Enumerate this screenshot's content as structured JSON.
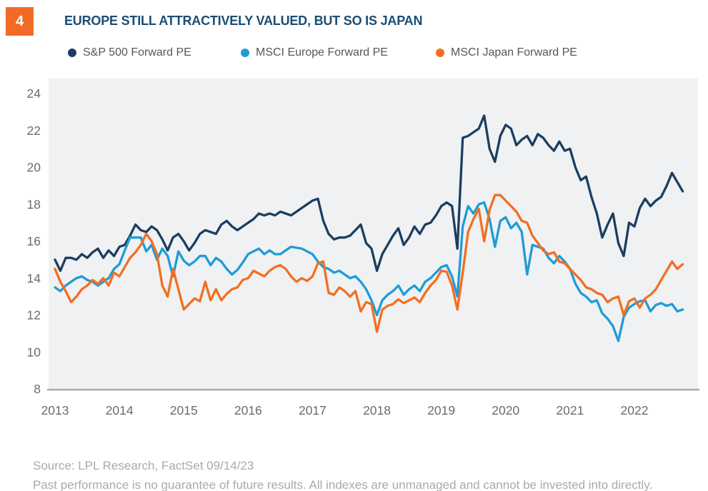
{
  "figure_badge": "4",
  "title": "EUROPE STILL ATTRACTIVELY VALUED, BUT SO IS JAPAN",
  "footer": {
    "source": "Source: LPL Research, FactSet  09/14/23",
    "disclaimer": "Past performance is no guarantee of future results. All indexes are unmanaged and cannot be invested into directly."
  },
  "colors": {
    "badge_orange": "#F16B26",
    "title_navy": "#1B4D73",
    "plot_bg": "#F0F1F2",
    "axis_line": "#A9ABAD",
    "tick_text": "#6A6C6E",
    "legend_text": "#55575A",
    "footer_text": "#A8AAAD"
  },
  "chart_data": {
    "type": "line",
    "title": "EUROPE STILL ATTRACTIVELY VALUED, BUT SO IS JAPAN",
    "x_start": "2013-12",
    "x_end": "2023-09",
    "frequency": "monthly",
    "x_tick_labels": [
      "2013",
      "2014",
      "2015",
      "2016",
      "2017",
      "2018",
      "2019",
      "2020",
      "2021",
      "2022"
    ],
    "x_tick_indices": [
      0,
      12,
      24,
      36,
      48,
      60,
      72,
      84,
      96,
      108
    ],
    "y_ticks": [
      8,
      10,
      12,
      14,
      16,
      18,
      20,
      22,
      24
    ],
    "ylim": [
      8,
      24.9
    ],
    "grid": false,
    "legend_position": "top",
    "series": [
      {
        "name": "S&P 500 Forward PE",
        "color": "#1A3E61",
        "values": [
          15.0,
          14.4,
          15.1,
          15.1,
          15.0,
          15.3,
          15.1,
          15.4,
          15.6,
          15.1,
          15.5,
          15.2,
          15.7,
          15.8,
          16.3,
          16.9,
          16.6,
          16.5,
          16.8,
          16.6,
          16.1,
          15.5,
          16.2,
          16.4,
          16.0,
          15.5,
          15.9,
          16.4,
          16.6,
          16.5,
          16.4,
          16.9,
          17.1,
          16.8,
          16.6,
          16.8,
          17.0,
          17.2,
          17.5,
          17.4,
          17.5,
          17.4,
          17.6,
          17.5,
          17.4,
          17.6,
          17.8,
          18.0,
          18.2,
          18.3,
          17.1,
          16.4,
          16.1,
          16.2,
          16.2,
          16.3,
          16.6,
          16.9,
          15.9,
          15.6,
          14.4,
          15.3,
          15.8,
          16.3,
          16.7,
          15.8,
          16.2,
          16.8,
          16.4,
          16.9,
          17.0,
          17.4,
          17.9,
          18.1,
          17.9,
          15.6,
          21.6,
          21.7,
          21.9,
          22.1,
          22.8,
          21.0,
          20.3,
          21.7,
          22.3,
          22.1,
          21.2,
          21.5,
          21.7,
          21.2,
          21.8,
          21.6,
          21.2,
          20.9,
          21.4,
          20.9,
          21.0,
          20.0,
          19.3,
          19.5,
          18.4,
          17.5,
          16.2,
          16.9,
          17.5,
          15.9,
          15.2,
          17.0,
          16.8,
          17.8,
          18.3,
          17.9,
          18.2,
          18.4,
          19.0,
          19.7,
          19.2,
          18.7
        ]
      },
      {
        "name": "MSCI Europe Forward PE",
        "color": "#1E9CD7",
        "values": [
          13.5,
          13.3,
          13.6,
          13.8,
          14.0,
          14.1,
          13.9,
          13.8,
          13.6,
          13.8,
          14.0,
          14.5,
          14.75,
          15.5,
          16.2,
          16.2,
          16.2,
          15.45,
          15.8,
          15.0,
          15.6,
          15.2,
          14.1,
          15.45,
          14.95,
          14.7,
          14.9,
          15.2,
          15.2,
          14.7,
          15.1,
          14.9,
          14.5,
          14.2,
          14.45,
          14.85,
          15.3,
          15.45,
          15.6,
          15.3,
          15.5,
          15.3,
          15.3,
          15.5,
          15.7,
          15.65,
          15.6,
          15.45,
          15.3,
          14.9,
          14.6,
          14.5,
          14.3,
          14.4,
          14.2,
          14.0,
          14.1,
          13.8,
          13.4,
          12.8,
          12.0,
          12.8,
          13.1,
          13.3,
          13.6,
          13.1,
          13.4,
          13.6,
          13.3,
          13.8,
          14.0,
          14.3,
          14.6,
          14.7,
          14.1,
          13.0,
          16.8,
          17.9,
          17.5,
          18.0,
          18.1,
          17.2,
          15.7,
          17.1,
          17.3,
          16.7,
          17.0,
          16.5,
          14.2,
          15.8,
          15.7,
          15.6,
          15.1,
          14.8,
          15.2,
          14.9,
          14.5,
          13.7,
          13.2,
          13.0,
          12.7,
          12.8,
          12.1,
          11.8,
          11.4,
          10.6,
          11.9,
          12.4,
          12.6,
          12.75,
          12.8,
          12.2,
          12.55,
          12.65,
          12.5,
          12.6,
          12.2,
          12.3
        ]
      },
      {
        "name": "MSCI Japan Forward PE",
        "color": "#F26F21",
        "values": [
          14.5,
          13.8,
          13.3,
          12.7,
          13.0,
          13.4,
          13.6,
          13.9,
          13.7,
          14.0,
          13.6,
          14.3,
          14.1,
          14.6,
          15.1,
          15.4,
          15.8,
          16.4,
          16.0,
          15.3,
          13.6,
          13.0,
          14.5,
          13.4,
          12.3,
          12.6,
          12.9,
          12.75,
          13.8,
          12.8,
          13.4,
          12.8,
          13.15,
          13.4,
          13.5,
          13.9,
          14.0,
          14.4,
          14.25,
          14.1,
          14.4,
          14.6,
          14.7,
          14.5,
          14.1,
          13.8,
          14.0,
          13.85,
          14.1,
          14.8,
          14.9,
          13.2,
          13.1,
          13.5,
          13.3,
          13.0,
          13.3,
          12.2,
          12.7,
          12.6,
          11.1,
          12.3,
          12.5,
          12.6,
          12.85,
          12.65,
          12.8,
          12.95,
          12.7,
          13.2,
          13.6,
          13.9,
          14.4,
          14.35,
          13.6,
          12.3,
          14.3,
          16.5,
          17.2,
          17.75,
          16.0,
          17.7,
          18.5,
          18.5,
          18.2,
          17.9,
          17.6,
          17.1,
          17.0,
          16.3,
          15.9,
          15.5,
          15.3,
          15.4,
          14.9,
          14.8,
          14.5,
          14.2,
          13.9,
          13.5,
          13.4,
          13.2,
          13.1,
          12.7,
          12.9,
          13.0,
          12.0,
          12.75,
          12.9,
          12.4,
          12.9,
          13.1,
          13.4,
          13.9,
          14.4,
          14.9,
          14.5,
          14.75
        ]
      }
    ]
  }
}
